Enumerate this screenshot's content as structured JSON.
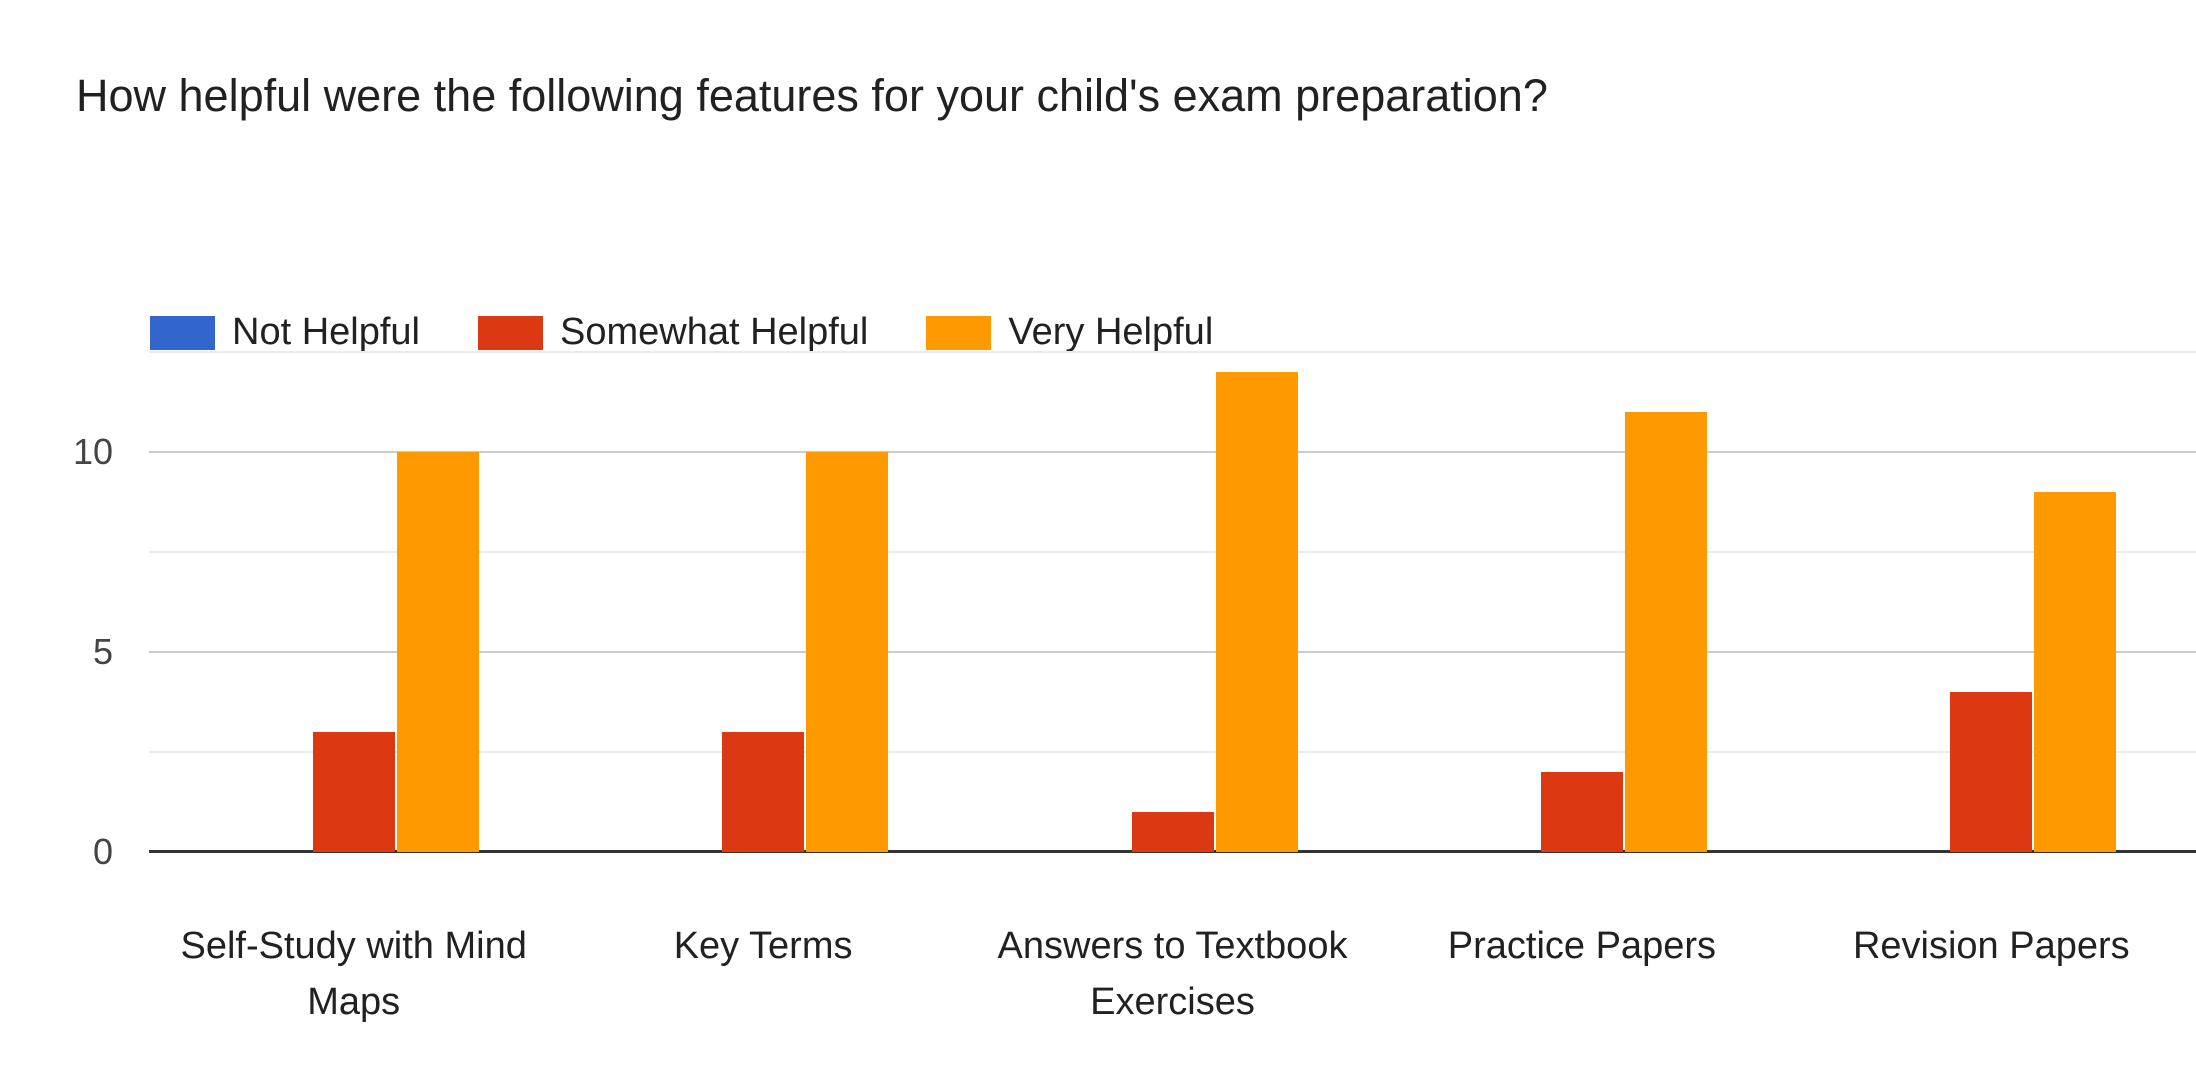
{
  "colors": {
    "background": "#ffffff",
    "title_text": "#212121",
    "tick_text": "#444444",
    "category_text": "#212121",
    "axis_line": "#333333",
    "grid_major": "#cccccc",
    "grid_minor": "#ebebeb",
    "series_blue": "#3366CC",
    "series_red": "#DC3912",
    "series_orange": "#FF9900"
  },
  "chart_data": {
    "type": "bar",
    "title": "How helpful were the following features for your child's exam preparation?",
    "categories": [
      "Self-Study with Mind Maps",
      "Key Terms",
      "Answers to Textbook Exercises",
      "Practice Papers",
      "Revision Papers"
    ],
    "series": [
      {
        "name": "Not Helpful",
        "color": "#3366CC",
        "values": [
          0,
          0,
          0,
          0,
          0
        ]
      },
      {
        "name": "Somewhat Helpful",
        "color": "#DC3912",
        "values": [
          3,
          3,
          1,
          2,
          4
        ]
      },
      {
        "name": "Very Helpful",
        "color": "#FF9900",
        "values": [
          10,
          10,
          12,
          11,
          9
        ]
      }
    ],
    "xlabel": "",
    "ylabel": "",
    "ylim": [
      0,
      12.5
    ],
    "yticks_labeled": [
      0,
      5,
      10
    ],
    "yticks_minor": [
      2.5,
      7.5,
      12.5
    ],
    "grid": true,
    "legend_position": "top"
  }
}
